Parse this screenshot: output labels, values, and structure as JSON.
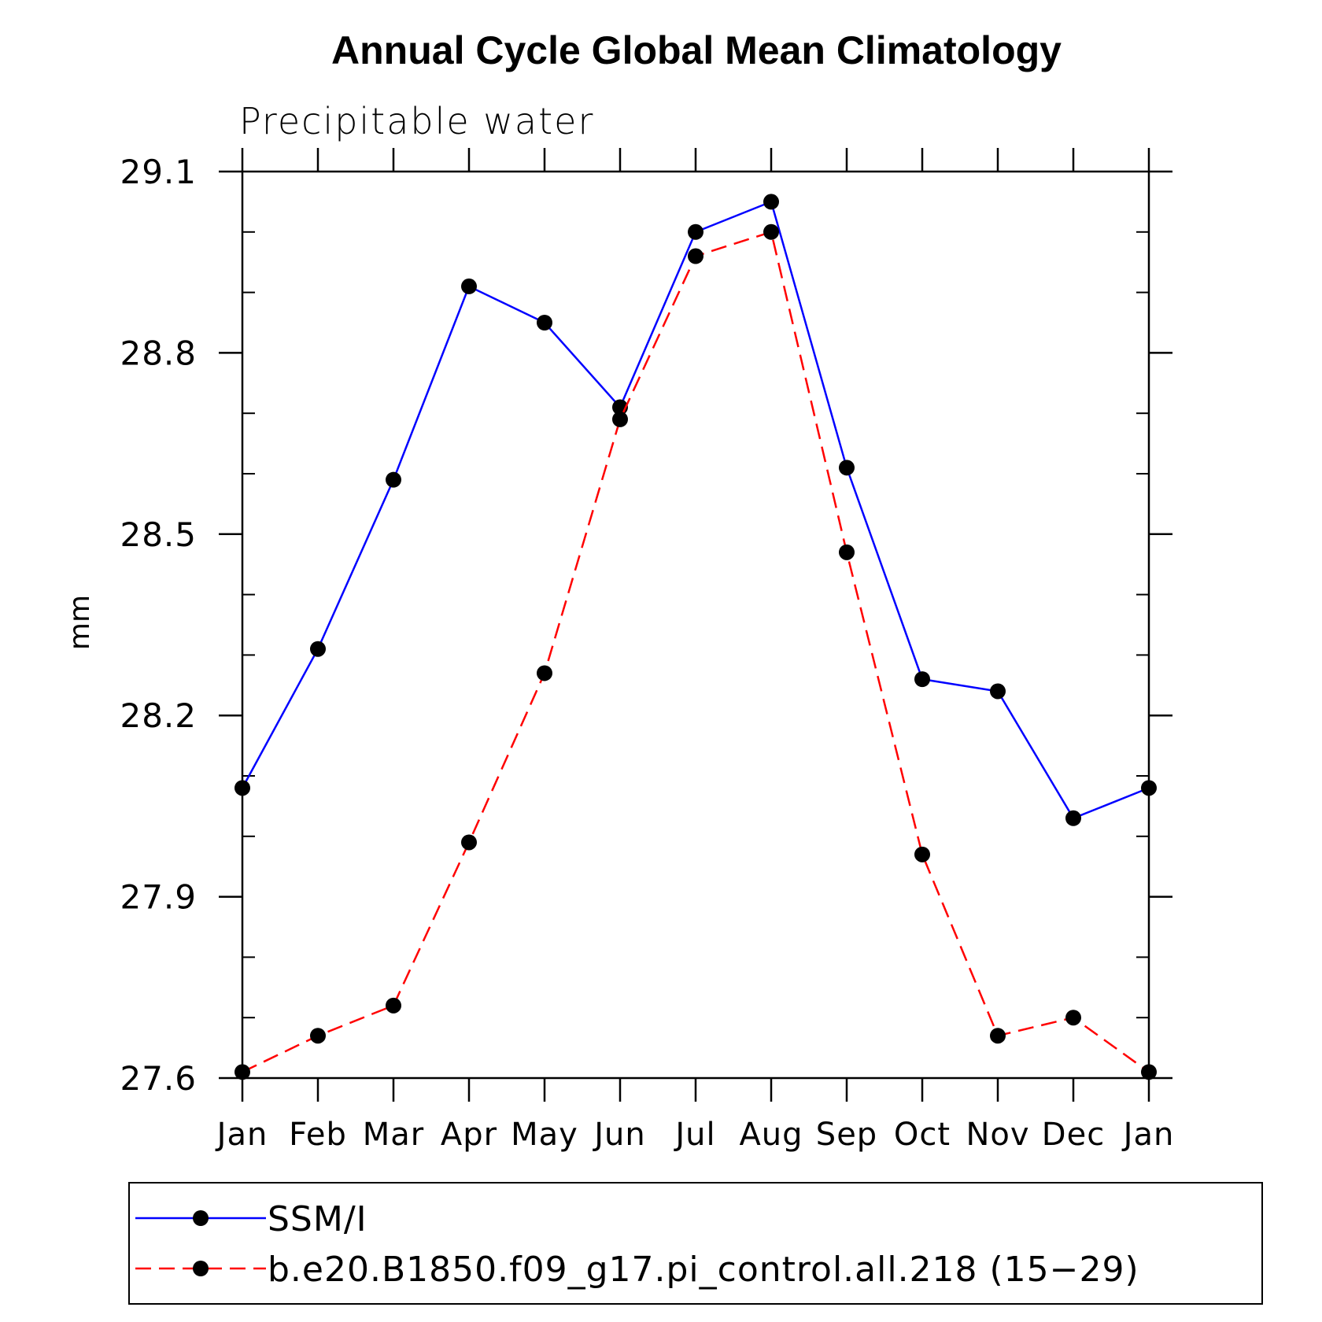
{
  "chart_data": {
    "type": "line",
    "title": "Annual Cycle Global Mean Climatology",
    "subtitle": "Precipitable water",
    "ylabel": "mm",
    "xlabel": "",
    "categories": [
      "Jan",
      "Feb",
      "Mar",
      "Apr",
      "May",
      "Jun",
      "Jul",
      "Aug",
      "Sep",
      "Oct",
      "Nov",
      "Dec",
      "Jan"
    ],
    "ylim": [
      27.6,
      29.1
    ],
    "yticks": [
      "27.6",
      "27.9",
      "28.2",
      "28.5",
      "28.8",
      "29.1"
    ],
    "yminor_step": 0.1,
    "series": [
      {
        "name": "SSM/I",
        "color": "#0000ff",
        "dash": "solid",
        "values": [
          28.08,
          28.31,
          28.59,
          28.91,
          28.85,
          28.71,
          29.0,
          29.05,
          28.61,
          28.26,
          28.24,
          28.03,
          28.08
        ]
      },
      {
        "name": "b.e20.B1850.f09_g17.pi_control.all.218 (15−29)",
        "color": "#ff0000",
        "dash": "dashed",
        "values": [
          27.61,
          27.67,
          27.72,
          27.99,
          28.27,
          28.69,
          28.96,
          29.0,
          28.47,
          27.97,
          27.67,
          27.7,
          27.61
        ]
      }
    ],
    "legend_position": "bottom"
  }
}
